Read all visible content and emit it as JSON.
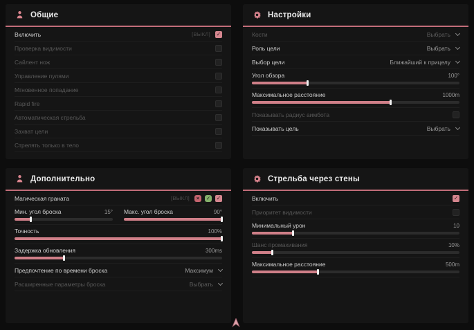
{
  "page": {
    "bg": "#0d0d0d",
    "panel_bg": "#151515",
    "accent": "#d5868f",
    "accent_line": "#c26d79",
    "slider_fill": "#cf7f88"
  },
  "panels": {
    "general": {
      "title": "Общие",
      "icon": "person-icon",
      "rows": [
        {
          "type": "check",
          "label": "Включить",
          "active": true,
          "tag": "[ВЫКЛ]",
          "checked": true
        },
        {
          "type": "check",
          "label": "Проверка видимости",
          "active": false,
          "checked": false
        },
        {
          "type": "check",
          "label": "Сайлент нож",
          "active": false,
          "checked": false
        },
        {
          "type": "check",
          "label": "Управление пулями",
          "active": false,
          "checked": false
        },
        {
          "type": "check",
          "label": "Мгновенное попадание",
          "active": false,
          "checked": false
        },
        {
          "type": "check",
          "label": "Rapid fire",
          "active": false,
          "checked": false
        },
        {
          "type": "check",
          "label": "Автоматическая стрельба",
          "active": false,
          "checked": false
        },
        {
          "type": "check",
          "label": "Захват цели",
          "active": false,
          "checked": false
        },
        {
          "type": "check",
          "label": "Стрелять только в тело",
          "active": false,
          "checked": false
        }
      ]
    },
    "settings": {
      "title": "Настройки",
      "icon": "gear-icon",
      "rows": [
        {
          "type": "select",
          "label": "Кости",
          "active": false,
          "value": "Выбрать"
        },
        {
          "type": "select",
          "label": "Роль цели",
          "active": true,
          "value": "Выбрать"
        },
        {
          "type": "select",
          "label": "Выбор цели",
          "active": true,
          "value": "Ближайший к прицелу"
        },
        {
          "type": "slider",
          "label": "Угол обзора",
          "active": true,
          "value": "100°",
          "fill": 27
        },
        {
          "type": "slider",
          "label": "Максимальное расстояние",
          "active": true,
          "value": "1000m",
          "fill": 67
        },
        {
          "type": "check",
          "label": "Показывать радиус аимбота",
          "active": false,
          "checked": false
        },
        {
          "type": "select",
          "label": "Показывать цель",
          "active": true,
          "value": "Выбрать"
        }
      ]
    },
    "additional": {
      "title": "Дополнительно",
      "icon": "person-icon",
      "rows": [
        {
          "type": "check",
          "label": "Магическая граната",
          "active": true,
          "tag": "[ВЫКЛ]",
          "checked": true,
          "icons": [
            {
              "name": "cross-badge-icon",
              "glyph": "×",
              "bg": "#c4646f"
            },
            {
              "name": "check-badge-icon",
              "glyph": "✓",
              "bg": "#84af6a"
            }
          ]
        },
        {
          "type": "slider2",
          "items": [
            {
              "label": "Мин. угол броска",
              "active": true,
              "value": "15°",
              "fill": 17
            },
            {
              "label": "Макс. угол броска",
              "active": true,
              "value": "90°",
              "fill": 100
            }
          ]
        },
        {
          "type": "slider",
          "label": "Точность",
          "active": true,
          "value": "100%",
          "fill": 100
        },
        {
          "type": "slider",
          "label": "Задержка обновления",
          "active": true,
          "value": "300ms",
          "fill": 24
        },
        {
          "type": "select",
          "label": "Предпочтение по времени броска",
          "active": true,
          "value": "Максимум"
        },
        {
          "type": "select",
          "label": "Расширенные параметры броска",
          "active": false,
          "value": "Выбрать"
        }
      ]
    },
    "wallshot": {
      "title": "Стрельба через стены",
      "icon": "gear-icon",
      "rows": [
        {
          "type": "check",
          "label": "Включить",
          "active": true,
          "checked": true
        },
        {
          "type": "check",
          "label": "Приоритет видимости",
          "active": false,
          "checked": false
        },
        {
          "type": "slider",
          "label": "Минимальный урон",
          "active": true,
          "value": "10",
          "fill": 20
        },
        {
          "type": "slider",
          "label": "Шанс промахивания",
          "active": false,
          "value": "10%",
          "fill": 10
        },
        {
          "type": "slider",
          "label": "Максимальное расстояние",
          "active": true,
          "value": "500m",
          "fill": 32
        }
      ]
    }
  },
  "cursor": {
    "name": "cursor-icon",
    "color": "#dfa2ab"
  }
}
